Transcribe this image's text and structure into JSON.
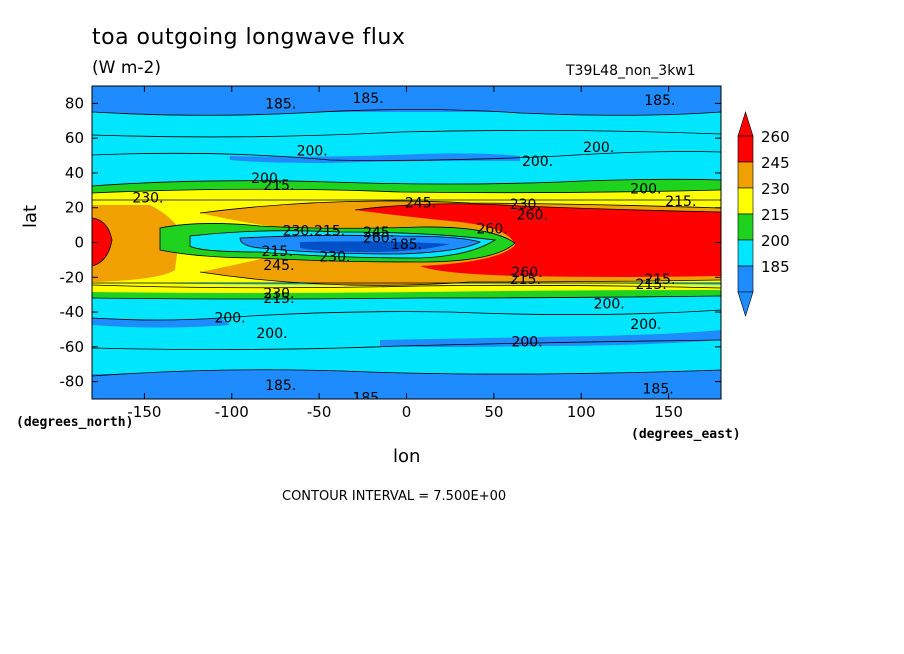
{
  "header": {
    "title": "toa outgoing longwave flux",
    "units": "(W m-2)",
    "run_id": "T39L48_non_3kw1"
  },
  "axes": {
    "x_label": "lon",
    "y_label": "lat",
    "x_unit_note": "(degrees_east)",
    "y_unit_note": "(degrees_north)"
  },
  "footer": {
    "contour_interval": "CONTOUR INTERVAL = 7.500E+00"
  },
  "chart_data": {
    "type": "heatmap",
    "title": "toa outgoing longwave flux",
    "subtitle": "(W m-2)",
    "annotation": "T39L48_non_3kw1",
    "xlabel": "lon",
    "ylabel": "lat",
    "xlim": [
      -180,
      180
    ],
    "ylim": [
      -90,
      90
    ],
    "x_ticks": [
      -150,
      -100,
      -50,
      0,
      50,
      100,
      150
    ],
    "y_ticks": [
      -80,
      -60,
      -40,
      -20,
      0,
      20,
      40,
      60,
      80
    ],
    "x_tick_labels": [
      "-150",
      "-100",
      "-50",
      "0",
      "50",
      "100",
      "150"
    ],
    "y_tick_labels": [
      "-80",
      "-60",
      "-40",
      "-20",
      "0",
      "20",
      "40",
      "60",
      "80"
    ],
    "colorbar": {
      "levels": [
        185,
        200,
        215,
        230,
        245,
        260
      ],
      "labels": [
        "185",
        "200",
        "215",
        "230",
        "245",
        "260"
      ],
      "colors": [
        "#1e8cff",
        "#00e6ff",
        "#1ed21e",
        "#ffff00",
        "#f0a000",
        "#ff0000"
      ],
      "extend": "both"
    },
    "contour_interval": 7.5,
    "contour_labels": [
      {
        "text": "185.",
        "x": -22,
        "y": 83
      },
      {
        "text": "185.",
        "x": -72,
        "y": 80
      },
      {
        "text": "185.",
        "x": 145,
        "y": 82
      },
      {
        "text": "200.",
        "x": -54,
        "y": 53
      },
      {
        "text": "200.",
        "x": 110,
        "y": 55
      },
      {
        "text": "200.",
        "x": 75,
        "y": 47
      },
      {
        "text": "200.",
        "x": -80,
        "y": 37
      },
      {
        "text": "200.",
        "x": 137,
        "y": 31
      },
      {
        "text": "215.",
        "x": -73,
        "y": 33
      },
      {
        "text": "215.",
        "x": 157,
        "y": 24
      },
      {
        "text": "230.",
        "x": -148,
        "y": 26
      },
      {
        "text": "230.",
        "x": 68,
        "y": 22
      },
      {
        "text": "245.",
        "x": 8,
        "y": 23
      },
      {
        "text": "260.",
        "x": 72,
        "y": 16
      },
      {
        "text": "260.",
        "x": 49,
        "y": 8
      },
      {
        "text": "230.",
        "x": -62,
        "y": 7
      },
      {
        "text": "215.",
        "x": -44,
        "y": 7
      },
      {
        "text": "245.",
        "x": -16,
        "y": 6
      },
      {
        "text": "260.",
        "x": -16,
        "y": 3
      },
      {
        "text": "185.",
        "x": 0,
        "y": -1
      },
      {
        "text": "215.",
        "x": -74,
        "y": -5
      },
      {
        "text": "230.",
        "x": -41,
        "y": -8
      },
      {
        "text": "245.",
        "x": -73,
        "y": -13
      },
      {
        "text": "260.",
        "x": 69,
        "y": -17
      },
      {
        "text": "215.",
        "x": 68,
        "y": -21
      },
      {
        "text": "215.",
        "x": 145,
        "y": -21
      },
      {
        "text": "215.",
        "x": 140,
        "y": -24
      },
      {
        "text": "230.",
        "x": -73,
        "y": -29
      },
      {
        "text": "215.",
        "x": -73,
        "y": -32
      },
      {
        "text": "200.",
        "x": 116,
        "y": -35
      },
      {
        "text": "200.",
        "x": -101,
        "y": -43
      },
      {
        "text": "200.",
        "x": 137,
        "y": -47
      },
      {
        "text": "200.",
        "x": -77,
        "y": -52
      },
      {
        "text": "200.",
        "x": 69,
        "y": -57
      },
      {
        "text": "185.",
        "x": -72,
        "y": -82
      },
      {
        "text": "185.",
        "x": -22,
        "y": -89
      },
      {
        "text": "185.",
        "x": 144,
        "y": -84
      }
    ]
  }
}
